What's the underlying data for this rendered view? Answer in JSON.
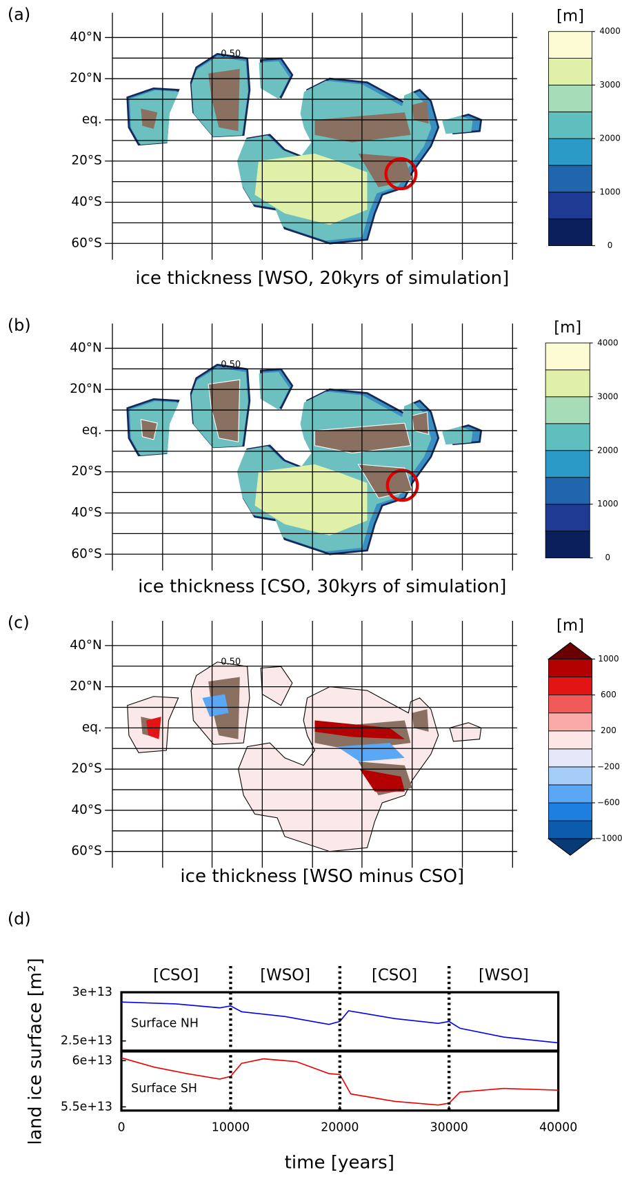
{
  "chart_data": [
    {
      "type": "map",
      "panel_label": "(a)",
      "title": "ice thickness [WSO, 20kyrs of simulation]",
      "annotation": "0.50",
      "ylim": [
        -65,
        52
      ],
      "yticks": [
        {
          "value": 40,
          "label": "40°N"
        },
        {
          "value": 20,
          "label": "20°N"
        },
        {
          "value": 0,
          "label": "eq."
        },
        {
          "value": -20,
          "label": "20°S"
        },
        {
          "value": -40,
          "label": "40°S"
        },
        {
          "value": -60,
          "label": "60°S"
        }
      ],
      "colorbar": {
        "label": "[m]",
        "lim": [
          0,
          4000
        ],
        "ticks": [
          0,
          1000,
          2000,
          3000,
          4000
        ],
        "colors": [
          "#0a1f5c",
          "#1f3a93",
          "#2166ac",
          "#2c9ac6",
          "#5fbfbf",
          "#a6dcb8",
          "#e1f0a8",
          "#fdfbd3"
        ]
      }
    },
    {
      "type": "map",
      "panel_label": "(b)",
      "title": "ice thickness [CSO, 30kyrs of simulation]",
      "annotation": "0.50",
      "ylim": [
        -65,
        52
      ],
      "yticks": [
        {
          "value": 40,
          "label": "40°N"
        },
        {
          "value": 20,
          "label": "20°N"
        },
        {
          "value": 0,
          "label": "eq."
        },
        {
          "value": -20,
          "label": "20°S"
        },
        {
          "value": -40,
          "label": "40°S"
        },
        {
          "value": -60,
          "label": "60°S"
        }
      ],
      "colorbar": {
        "label": "[m]",
        "lim": [
          0,
          4000
        ],
        "ticks": [
          0,
          1000,
          2000,
          3000,
          4000
        ],
        "colors": [
          "#0a1f5c",
          "#1f3a93",
          "#2166ac",
          "#2c9ac6",
          "#5fbfbf",
          "#a6dcb8",
          "#e1f0a8",
          "#fdfbd3"
        ]
      }
    },
    {
      "type": "map",
      "panel_label": "(c)",
      "title": "ice thickness [WSO minus CSO]",
      "annotation": "0.50",
      "ylim": [
        -65,
        52
      ],
      "yticks": [
        {
          "value": 40,
          "label": "40°N"
        },
        {
          "value": 20,
          "label": "20°N"
        },
        {
          "value": 0,
          "label": "eq."
        },
        {
          "value": -20,
          "label": "20°S"
        },
        {
          "value": -40,
          "label": "40°S"
        },
        {
          "value": -60,
          "label": "60°S"
        }
      ],
      "colorbar": {
        "label": "[m]",
        "lim": [
          -1000,
          1000
        ],
        "ticks": [
          {
            "value": -1000,
            "label": "−1000"
          },
          {
            "value": -600,
            "label": "−600"
          },
          {
            "value": -200,
            "label": "−200"
          },
          200,
          600,
          1000
        ],
        "colors": [
          "#0b5cad",
          "#1f7fe0",
          "#5aa8f5",
          "#a6cdf8",
          "#e6e8fa",
          "#fde6e6",
          "#fbaaaa",
          "#f25a5a",
          "#e31414",
          "#b30000"
        ],
        "extend_colors": [
          "#083b75",
          "#6b0000"
        ]
      }
    },
    {
      "type": "line",
      "panel_label": "(d)",
      "xlabel": "time [years]",
      "ylabel": "land ice surface [m²]",
      "xlim": [
        0,
        40000
      ],
      "xticks": [
        0,
        10000,
        20000,
        30000,
        40000
      ],
      "phase_edges": [
        0,
        10000,
        20000,
        30000,
        40000
      ],
      "phase_labels": [
        "[CSO]",
        "[WSO]",
        "[CSO]",
        "[WSO]"
      ],
      "subplots": [
        {
          "ylim": [
            24000000000000.0,
            30000000000000.0
          ],
          "yticks": [
            {
              "value": 30000000000000.0,
              "label": "3e+13"
            },
            {
              "value": 25000000000000.0,
              "label": "2.5e+13"
            }
          ],
          "series": [
            {
              "name": "Surface NH",
              "color": "#0000ee",
              "x": [
                0,
                5000,
                9000,
                10000,
                11000,
                15000,
                19000,
                20000,
                20800,
                25000,
                29000,
                30000,
                31000,
                35000,
                40000
              ],
              "values": [
                29000000000000.0,
                28800000000000.0,
                28400000000000.0,
                28600000000000.0,
                28000000000000.0,
                27500000000000.0,
                26700000000000.0,
                27000000000000.0,
                28100000000000.0,
                27300000000000.0,
                26800000000000.0,
                27000000000000.0,
                26300000000000.0,
                25400000000000.0,
                24800000000000.0
              ]
            }
          ]
        },
        {
          "ylim": [
            54600000000000.0,
            61000000000000.0
          ],
          "yticks": [
            {
              "value": 60000000000000.0,
              "label": "6e+13"
            },
            {
              "value": 55000000000000.0,
              "label": "5.5e+13"
            }
          ],
          "series": [
            {
              "name": "Surface SH",
              "color": "#ee0000",
              "x": [
                0,
                3000,
                6000,
                9000,
                10000,
                11000,
                13000,
                16000,
                19000,
                20000,
                21000,
                25000,
                29000,
                30000,
                31000,
                35000,
                40000
              ],
              "values": [
                60300000000000.0,
                59300000000000.0,
                58600000000000.0,
                58000000000000.0,
                58300000000000.0,
                59700000000000.0,
                60200000000000.0,
                59900000000000.0,
                58600000000000.0,
                58500000000000.0,
                56400000000000.0,
                55600000000000.0,
                55200000000000.0,
                55400000000000.0,
                56600000000000.0,
                57000000000000.0,
                56800000000000.0
              ]
            }
          ]
        }
      ]
    }
  ]
}
